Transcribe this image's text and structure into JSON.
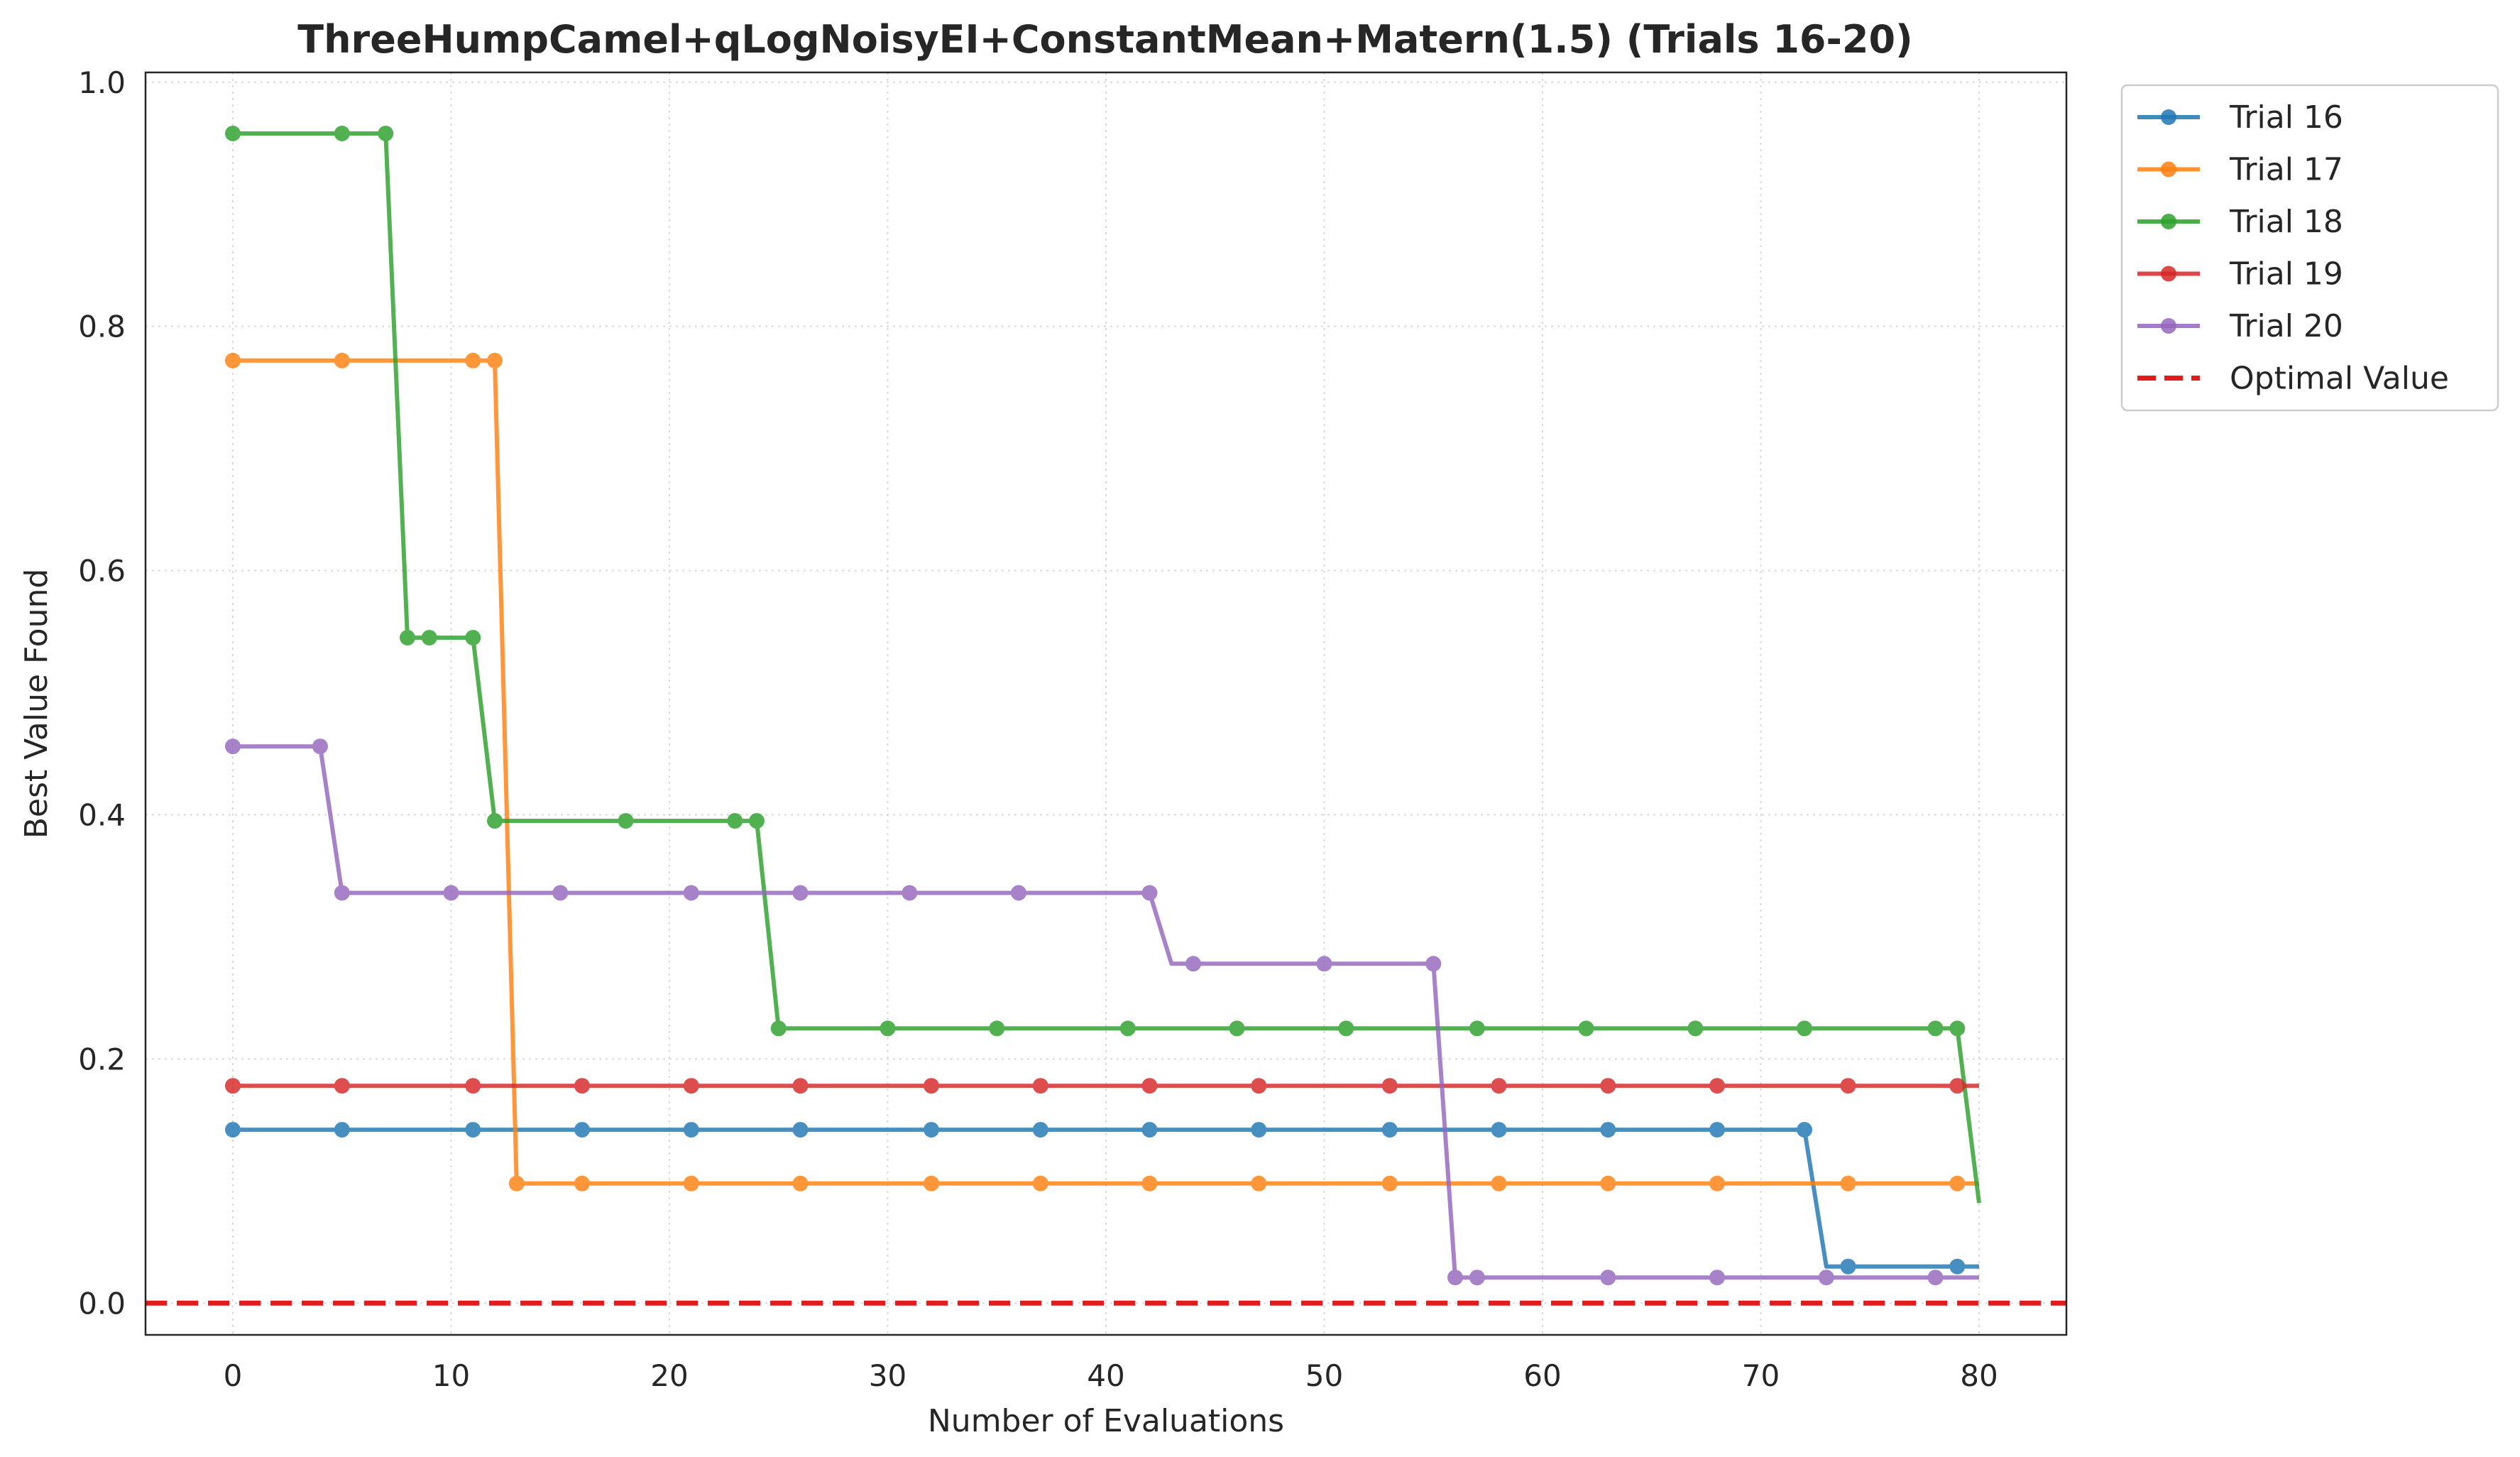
{
  "chart_data": {
    "type": "line",
    "title": "ThreeHumpCamel+qLogNoisyEI+ConstantMean+Matern(1.5) (Trials 16-20)",
    "xlabel": "Number of Evaluations",
    "ylabel": "Best Value Found",
    "xlim": [
      -4,
      84
    ],
    "ylim": [
      -0.026,
      1.008
    ],
    "x_ticks": [
      0,
      10,
      20,
      30,
      40,
      50,
      60,
      70,
      80
    ],
    "y_ticks": [
      0.0,
      0.2,
      0.4,
      0.6,
      0.8,
      1.0
    ],
    "x_tick_labels": [
      "0",
      "10",
      "20",
      "30",
      "40",
      "50",
      "60",
      "70",
      "80"
    ],
    "y_tick_labels": [
      "0.0",
      "0.2",
      "0.4",
      "0.6",
      "0.8",
      "1.0"
    ],
    "grid": true,
    "legend_position": "outside-top-right",
    "series": [
      {
        "name": "Trial 16",
        "color": "#1f77b4",
        "line": [
          [
            0,
            0.142
          ],
          [
            72,
            0.142
          ],
          [
            73,
            0.03
          ],
          [
            80,
            0.03
          ]
        ],
        "markers": [
          [
            0,
            0.142
          ],
          [
            5,
            0.142
          ],
          [
            11,
            0.142
          ],
          [
            16,
            0.142
          ],
          [
            21,
            0.142
          ],
          [
            26,
            0.142
          ],
          [
            32,
            0.142
          ],
          [
            37,
            0.142
          ],
          [
            42,
            0.142
          ],
          [
            47,
            0.142
          ],
          [
            53,
            0.142
          ],
          [
            58,
            0.142
          ],
          [
            63,
            0.142
          ],
          [
            68,
            0.142
          ],
          [
            72,
            0.142
          ],
          [
            74,
            0.03
          ],
          [
            79,
            0.03
          ]
        ]
      },
      {
        "name": "Trial 17",
        "color": "#ff7f0e",
        "line": [
          [
            0,
            0.772
          ],
          [
            12,
            0.772
          ],
          [
            13,
            0.098
          ],
          [
            80,
            0.098
          ]
        ],
        "markers": [
          [
            0,
            0.772
          ],
          [
            5,
            0.772
          ],
          [
            11,
            0.772
          ],
          [
            12,
            0.772
          ],
          [
            13,
            0.098
          ],
          [
            16,
            0.098
          ],
          [
            21,
            0.098
          ],
          [
            26,
            0.098
          ],
          [
            32,
            0.098
          ],
          [
            37,
            0.098
          ],
          [
            42,
            0.098
          ],
          [
            47,
            0.098
          ],
          [
            53,
            0.098
          ],
          [
            58,
            0.098
          ],
          [
            63,
            0.098
          ],
          [
            68,
            0.098
          ],
          [
            74,
            0.098
          ],
          [
            79,
            0.098
          ]
        ]
      },
      {
        "name": "Trial 18",
        "color": "#2ca02c",
        "line": [
          [
            0,
            0.958
          ],
          [
            7,
            0.958
          ],
          [
            8,
            0.545
          ],
          [
            11,
            0.545
          ],
          [
            12,
            0.395
          ],
          [
            24,
            0.395
          ],
          [
            25,
            0.225
          ],
          [
            79,
            0.225
          ],
          [
            80,
            0.082
          ]
        ],
        "markers": [
          [
            0,
            0.958
          ],
          [
            5,
            0.958
          ],
          [
            7,
            0.958
          ],
          [
            8,
            0.545
          ],
          [
            9,
            0.545
          ],
          [
            11,
            0.545
          ],
          [
            12,
            0.395
          ],
          [
            18,
            0.395
          ],
          [
            23,
            0.395
          ],
          [
            24,
            0.395
          ],
          [
            25,
            0.225
          ],
          [
            30,
            0.225
          ],
          [
            35,
            0.225
          ],
          [
            41,
            0.225
          ],
          [
            46,
            0.225
          ],
          [
            51,
            0.225
          ],
          [
            57,
            0.225
          ],
          [
            62,
            0.225
          ],
          [
            67,
            0.225
          ],
          [
            72,
            0.225
          ],
          [
            78,
            0.225
          ],
          [
            79,
            0.225
          ]
        ]
      },
      {
        "name": "Trial 19",
        "color": "#d62728",
        "line": [
          [
            0,
            0.178
          ],
          [
            80,
            0.178
          ]
        ],
        "markers": [
          [
            0,
            0.178
          ],
          [
            5,
            0.178
          ],
          [
            11,
            0.178
          ],
          [
            16,
            0.178
          ],
          [
            21,
            0.178
          ],
          [
            26,
            0.178
          ],
          [
            32,
            0.178
          ],
          [
            37,
            0.178
          ],
          [
            42,
            0.178
          ],
          [
            47,
            0.178
          ],
          [
            53,
            0.178
          ],
          [
            58,
            0.178
          ],
          [
            63,
            0.178
          ],
          [
            68,
            0.178
          ],
          [
            74,
            0.178
          ],
          [
            79,
            0.178
          ]
        ]
      },
      {
        "name": "Trial 20",
        "color": "#9467bd",
        "line": [
          [
            0,
            0.456
          ],
          [
            4,
            0.456
          ],
          [
            5,
            0.336
          ],
          [
            42,
            0.336
          ],
          [
            43,
            0.278
          ],
          [
            55,
            0.278
          ],
          [
            56,
            0.021
          ],
          [
            80,
            0.021
          ]
        ],
        "markers": [
          [
            0,
            0.456
          ],
          [
            4,
            0.456
          ],
          [
            5,
            0.336
          ],
          [
            10,
            0.336
          ],
          [
            15,
            0.336
          ],
          [
            21,
            0.336
          ],
          [
            26,
            0.336
          ],
          [
            31,
            0.336
          ],
          [
            36,
            0.336
          ],
          [
            42,
            0.336
          ],
          [
            44,
            0.278
          ],
          [
            50,
            0.278
          ],
          [
            55,
            0.278
          ],
          [
            56,
            0.021
          ],
          [
            57,
            0.021
          ],
          [
            63,
            0.021
          ],
          [
            68,
            0.021
          ],
          [
            73,
            0.021
          ],
          [
            78,
            0.021
          ]
        ]
      }
    ],
    "reference_line": {
      "name": "Optimal Value",
      "y": 0.0,
      "color": "#e41a1c",
      "style": "dashed"
    }
  }
}
